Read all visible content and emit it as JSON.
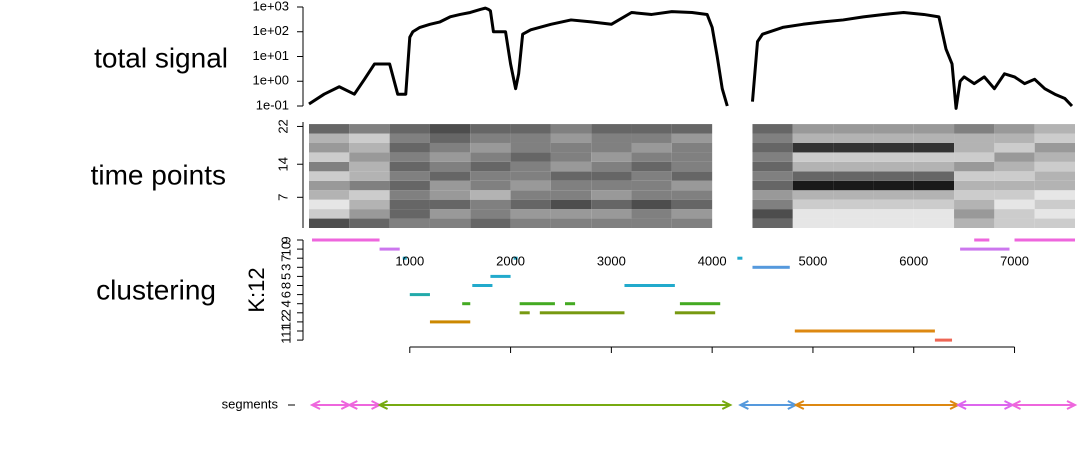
{
  "chart_data": [
    {
      "type": "line",
      "title": "total signal",
      "yscale": "log",
      "x": [
        0,
        150,
        300,
        450,
        550,
        650,
        720,
        800,
        880,
        920,
        960,
        1000,
        1030,
        1100,
        1200,
        1300,
        1400,
        1500,
        1600,
        1700,
        1750,
        1780,
        1800,
        1830,
        1950,
        2000,
        2050,
        2080,
        2120,
        2200,
        2400,
        2600,
        2800,
        3000,
        3200,
        3400,
        3600,
        3800,
        3950,
        4000,
        4050,
        4100,
        4150,
        4200,
        4400,
        4450,
        4500,
        4700,
        4900,
        5100,
        5300,
        5500,
        5700,
        5900,
        6100,
        6250,
        6320,
        6380,
        6420,
        6460,
        6500,
        6600,
        6700,
        6800,
        6900,
        7000,
        7100,
        7200,
        7300,
        7400,
        7500,
        7570
      ],
      "series": [
        {
          "color": "#000000",
          "values": [
            0.12,
            0.3,
            0.6,
            0.3,
            1.2,
            5,
            5,
            5,
            0.3,
            0.3,
            0.3,
            60,
            100,
            150,
            200,
            250,
            400,
            500,
            600,
            800,
            900,
            800,
            700,
            100,
            100,
            5,
            0.5,
            2,
            80,
            120,
            200,
            300,
            250,
            200,
            600,
            500,
            650,
            600,
            500,
            150,
            10,
            0.5,
            0.1,
            null,
            0.15,
            40,
            80,
            150,
            200,
            250,
            300,
            400,
            500,
            600,
            500,
            400,
            20,
            5,
            0.08,
            1,
            1.5,
            0.8,
            1.5,
            0.5,
            2,
            1.5,
            0.8,
            1.2,
            0.5,
            0.3,
            0.2,
            0.1
          ]
        }
      ],
      "xlim": [
        0,
        7600
      ],
      "ylim": [
        0.1,
        1000
      ],
      "yticks": [
        {
          "value": 0.1,
          "label": "1e-01"
        },
        {
          "value": 1,
          "label": "1e+00"
        },
        {
          "value": 10,
          "label": "1e+01"
        },
        {
          "value": 100,
          "label": "1e+02"
        },
        {
          "value": 1000,
          "label": "1e+03"
        }
      ]
    },
    {
      "type": "heatmap",
      "title": "time points",
      "x_edges": [
        0,
        400,
        800,
        1200,
        1600,
        2000,
        2400,
        2800,
        3200,
        3600,
        4000,
        4400,
        4800,
        5200,
        5600,
        6000,
        6400,
        6800,
        7200,
        7600
      ],
      "y_edges": [
        0.5,
        2.5,
        4.5,
        6.5,
        8.5,
        10.5,
        12.5,
        14.5,
        16.5,
        18.5,
        20.5,
        22.5
      ],
      "z": [
        [
          0.7,
          0.6,
          0.5,
          0.5,
          0.6,
          0.5,
          0.5,
          0.5,
          0.5,
          0.5,
          null,
          0.6,
          0.1,
          0.1,
          0.1,
          0.1,
          0.3,
          0.2,
          0.2
        ],
        [
          0.2,
          0.4,
          0.6,
          0.4,
          0.5,
          0.4,
          0.4,
          0.4,
          0.5,
          0.4,
          null,
          0.7,
          0.1,
          0.1,
          0.1,
          0.1,
          0.4,
          0.2,
          0.1
        ],
        [
          0.1,
          0.3,
          0.6,
          0.6,
          0.5,
          0.6,
          0.7,
          0.6,
          0.7,
          0.6,
          null,
          0.5,
          0.2,
          0.2,
          0.2,
          0.2,
          0.3,
          0.1,
          0.2
        ],
        [
          0.3,
          0.2,
          0.5,
          0.4,
          0.3,
          0.5,
          0.5,
          0.4,
          0.5,
          0.5,
          null,
          0.4,
          0.3,
          0.3,
          0.3,
          0.3,
          0.2,
          0.2,
          0.1
        ],
        [
          0.4,
          0.5,
          0.6,
          0.4,
          0.5,
          0.4,
          0.5,
          0.5,
          0.5,
          0.4,
          null,
          0.6,
          0.9,
          0.9,
          0.9,
          0.9,
          0.3,
          0.3,
          0.3
        ],
        [
          0.2,
          0.3,
          0.5,
          0.6,
          0.5,
          0.5,
          0.6,
          0.6,
          0.5,
          0.6,
          null,
          0.5,
          0.6,
          0.6,
          0.6,
          0.6,
          0.2,
          0.2,
          0.3
        ],
        [
          0.5,
          0.3,
          0.6,
          0.5,
          0.6,
          0.5,
          0.4,
          0.5,
          0.6,
          0.5,
          null,
          0.6,
          0.3,
          0.3,
          0.3,
          0.3,
          0.4,
          0.3,
          0.2
        ],
        [
          0.2,
          0.4,
          0.5,
          0.4,
          0.5,
          0.6,
          0.5,
          0.4,
          0.5,
          0.5,
          null,
          0.5,
          0.2,
          0.2,
          0.2,
          0.2,
          0.2,
          0.4,
          0.3
        ],
        [
          0.4,
          0.3,
          0.6,
          0.5,
          0.4,
          0.5,
          0.5,
          0.5,
          0.4,
          0.5,
          null,
          0.6,
          0.8,
          0.8,
          0.8,
          0.8,
          0.3,
          0.2,
          0.4
        ],
        [
          0.3,
          0.2,
          0.5,
          0.6,
          0.5,
          0.5,
          0.4,
          0.5,
          0.5,
          0.4,
          null,
          0.5,
          0.3,
          0.3,
          0.3,
          0.3,
          0.3,
          0.3,
          0.2
        ],
        [
          0.6,
          0.5,
          0.6,
          0.7,
          0.6,
          0.6,
          0.5,
          0.6,
          0.6,
          0.6,
          null,
          0.6,
          0.4,
          0.4,
          0.4,
          0.4,
          0.5,
          0.4,
          0.3
        ]
      ],
      "xlim": [
        0,
        7600
      ],
      "ylim": [
        0.5,
        24
      ],
      "yticks": [
        7,
        14,
        22
      ]
    },
    {
      "type": "clusters",
      "title": "clustering",
      "ylabel": "K:12",
      "categories": [
        "9",
        "10",
        "7",
        "3",
        "5",
        "8",
        "6",
        "4",
        "2",
        "12",
        "11",
        "1"
      ],
      "colors": [
        "#ee66dd",
        "#cc77ee",
        "#22aacc",
        "#5599dd",
        "#22aacc",
        "#22aacc",
        "#22aaaa",
        "#44aa22",
        "#779911",
        "#cc8800",
        "#dd8811",
        "#ee6655"
      ],
      "segments": [
        {
          "cluster": 0,
          "x": [
            30,
            700
          ]
        },
        {
          "cluster": 0,
          "x": [
            6600,
            6750
          ]
        },
        {
          "cluster": 0,
          "x": [
            7000,
            7600
          ]
        },
        {
          "cluster": 1,
          "x": [
            700,
            900
          ]
        },
        {
          "cluster": 1,
          "x": [
            6460,
            6950
          ]
        },
        {
          "cluster": 2,
          "x": [
            930,
            970
          ]
        },
        {
          "cluster": 2,
          "x": [
            2030,
            2070
          ]
        },
        {
          "cluster": 2,
          "x": [
            4250,
            4300
          ]
        },
        {
          "cluster": 3,
          "x": [
            4400,
            4770
          ]
        },
        {
          "cluster": 4,
          "x": [
            1800,
            2000
          ]
        },
        {
          "cluster": 5,
          "x": [
            1620,
            1820
          ]
        },
        {
          "cluster": 5,
          "x": [
            3130,
            3630
          ]
        },
        {
          "cluster": 6,
          "x": [
            1000,
            1200
          ]
        },
        {
          "cluster": 7,
          "x": [
            1520,
            1600
          ]
        },
        {
          "cluster": 7,
          "x": [
            2090,
            2440
          ]
        },
        {
          "cluster": 7,
          "x": [
            2540,
            2640
          ]
        },
        {
          "cluster": 7,
          "x": [
            3680,
            4080
          ]
        },
        {
          "cluster": 8,
          "x": [
            2090,
            2190
          ]
        },
        {
          "cluster": 8,
          "x": [
            2290,
            3130
          ]
        },
        {
          "cluster": 8,
          "x": [
            3630,
            4030
          ]
        },
        {
          "cluster": 9,
          "x": [
            1200,
            1600
          ]
        },
        {
          "cluster": 10,
          "x": [
            4820,
            6210
          ]
        },
        {
          "cluster": 11,
          "x": [
            6210,
            6380
          ]
        }
      ],
      "xlim": [
        0,
        7600
      ],
      "xticks": [
        1000,
        2000,
        3000,
        4000,
        5000,
        6000,
        7000
      ]
    },
    {
      "type": "arrows",
      "title": "segments",
      "xlim": [
        0,
        7600
      ],
      "segments": [
        {
          "x": [
            30,
            400
          ],
          "color": "#ee66dd"
        },
        {
          "x": [
            400,
            700
          ],
          "color": "#ee66dd"
        },
        {
          "x": [
            700,
            4180
          ],
          "color": "#77aa11"
        },
        {
          "x": [
            4280,
            4830
          ],
          "color": "#5599dd"
        },
        {
          "x": [
            4830,
            6440
          ],
          "color": "#dd8811"
        },
        {
          "x": [
            6440,
            6980
          ],
          "color": "#dd66ee"
        },
        {
          "x": [
            6980,
            7600
          ],
          "color": "#ee66dd"
        }
      ]
    }
  ]
}
